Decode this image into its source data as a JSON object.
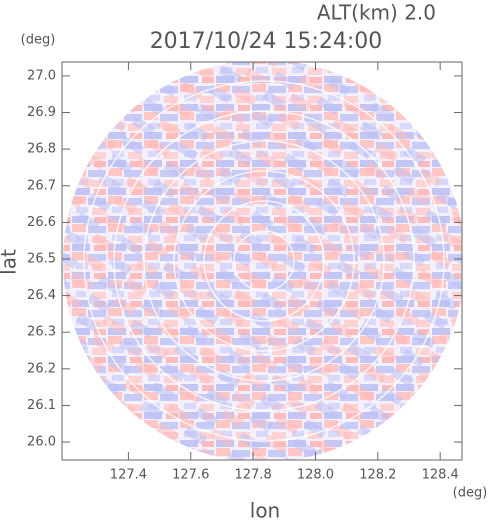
{
  "chart_data": {
    "type": "radar-image",
    "annotation": "ALT(km) 2.0",
    "title": "2017/10/24 15:24:00",
    "ylabel": "lat",
    "yunit": "(deg)",
    "xlabel": "lon",
    "xunit": "(deg)",
    "xlim": [
      127.187,
      128.47
    ],
    "ylim": [
      25.951,
      27.038
    ],
    "xticks": [
      127.4,
      127.6,
      127.8,
      {
        "value": 128,
        "label": "128.0"
      },
      128.2,
      128.4
    ],
    "yticks": [
      {
        "value": 26,
        "label": "26.0"
      },
      26.1,
      26.2,
      26.3,
      26.4,
      26.5,
      26.6,
      26.7,
      26.8,
      26.9,
      {
        "value": 27,
        "label": "27.0"
      }
    ]
  }
}
